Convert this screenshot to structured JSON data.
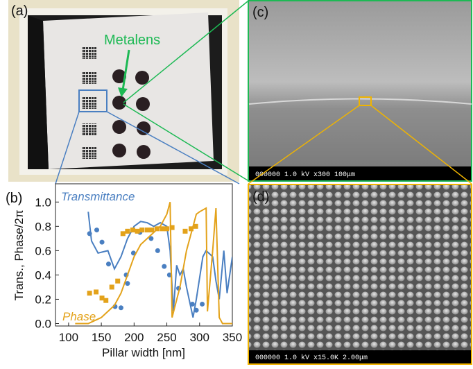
{
  "panels": {
    "a": {
      "label": "(a)",
      "callout": "Metalens"
    },
    "b": {
      "label": "(b)"
    },
    "c": {
      "label": "(c)",
      "info_bar": "000000   1.0 kV   x300   100μm"
    },
    "d": {
      "label": "(d)",
      "info_bar": "000000  1.0 kV  x15.0K  2.00μm"
    }
  },
  "chart_data": {
    "type": "line",
    "x_label": "Pillar width [nm]",
    "y_label": "Trans., Phase/2π",
    "xlim": [
      80,
      350
    ],
    "ylim": [
      -0.02,
      1.15
    ],
    "xticks": [
      100,
      150,
      200,
      250,
      300,
      350
    ],
    "yticks": [
      {
        "value": 0,
        "label": "0.0"
      },
      0.2,
      0.4,
      0.6,
      0.8,
      {
        "value": 1,
        "label": "1.0"
      }
    ],
    "series": [
      {
        "name": "Transmittance",
        "color": "#4a7fc1",
        "x": [
          130,
          135,
          145,
          160,
          170,
          180,
          190,
          200,
          210,
          220,
          230,
          240,
          250,
          255,
          260,
          265,
          270,
          275,
          280,
          290,
          295,
          305,
          310,
          320,
          325,
          330,
          337,
          342,
          350
        ],
        "values": [
          0.92,
          0.68,
          0.58,
          0.6,
          0.45,
          0.55,
          0.7,
          0.8,
          0.84,
          0.83,
          0.8,
          0.83,
          0.8,
          0.6,
          0.1,
          0.48,
          0.4,
          0.45,
          0.3,
          0.05,
          0.2,
          0.55,
          0.6,
          0.55,
          0.35,
          0.2,
          0.6,
          0.25,
          0.55
        ]
      },
      {
        "color": "#4a7fc1",
        "marker": "circle",
        "x": [
          132,
          143,
          151,
          161,
          171,
          180,
          188,
          190,
          199,
          209,
          226,
          236,
          246,
          254,
          268,
          289,
          295,
          304
        ],
        "values": [
          0.74,
          0.77,
          0.67,
          0.49,
          0.14,
          0.13,
          0.4,
          0.33,
          0.58,
          0.75,
          0.7,
          0.6,
          0.47,
          0.4,
          0.29,
          0.16,
          0.11,
          0.16
        ]
      },
      {
        "name": "Phase",
        "color": "#e3a21a",
        "x": [
          110,
          130,
          150,
          170,
          180,
          190,
          200,
          210,
          220,
          230,
          240,
          250,
          255,
          258,
          270,
          280,
          290,
          295,
          300,
          310,
          312,
          320,
          325,
          330,
          335,
          350
        ],
        "values": [
          0,
          0,
          0.05,
          0.15,
          0.25,
          0.4,
          0.55,
          0.65,
          0.7,
          0.75,
          0.8,
          0.9,
          1.0,
          0.05,
          0.3,
          0.6,
          0.8,
          0.9,
          0.92,
          0.95,
          0.1,
          0.6,
          0.95,
          0.05,
          0,
          0
        ]
      },
      {
        "color": "#e3a21a",
        "marker": "square",
        "x": [
          132,
          142,
          151,
          157,
          166,
          175,
          183,
          190,
          198,
          205,
          212,
          220,
          227,
          235,
          243,
          250,
          258,
          278,
          287,
          294
        ],
        "values": [
          0.25,
          0.26,
          0.21,
          0.19,
          0.3,
          0.35,
          0.74,
          0.76,
          0.77,
          0.76,
          0.77,
          0.77,
          0.77,
          0.78,
          0.78,
          0.78,
          0.79,
          0.76,
          0.78,
          0.8
        ]
      }
    ]
  }
}
